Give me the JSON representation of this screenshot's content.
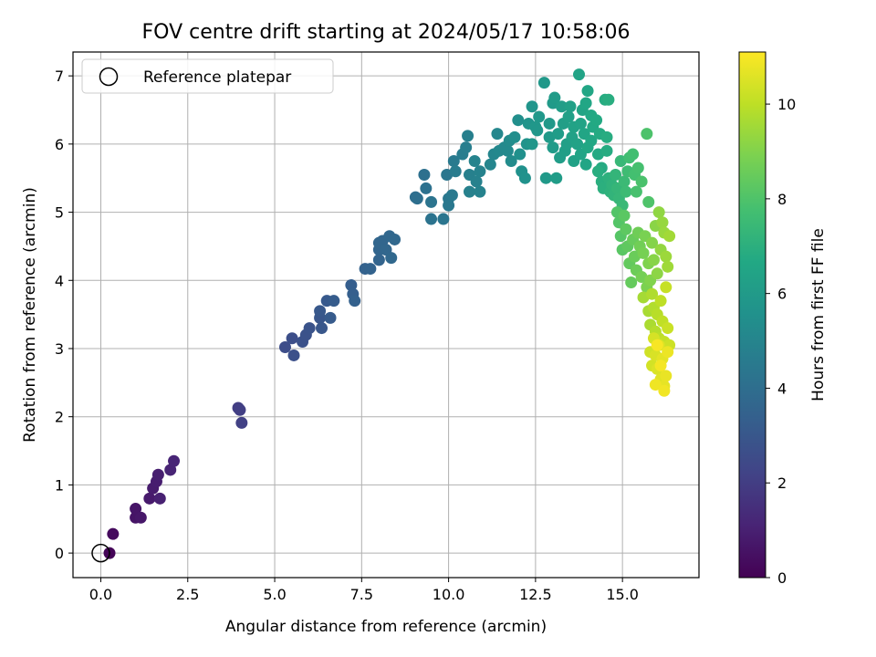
{
  "chart_data": {
    "type": "scatter",
    "title": "FOV centre drift starting at 2024/05/17 10:58:06",
    "xlabel": "Angular distance from reference (arcmin)",
    "ylabel": "Rotation from reference (arcmin)",
    "xlim": [
      -0.8,
      17.2
    ],
    "ylim": [
      -0.36,
      7.35
    ],
    "xticks": [
      0.0,
      2.5,
      5.0,
      7.5,
      10.0,
      12.5,
      15.0
    ],
    "xtick_labels": [
      "0.0",
      "2.5",
      "5.0",
      "7.5",
      "10.0",
      "12.5",
      "15.0"
    ],
    "yticks": [
      0,
      1,
      2,
      3,
      4,
      5,
      6,
      7
    ],
    "ytick_labels": [
      "0",
      "1",
      "2",
      "3",
      "4",
      "5",
      "6",
      "7"
    ],
    "grid": true,
    "legend": {
      "position": "top-left",
      "entries": [
        "Reference platepar"
      ]
    },
    "colorbar": {
      "label": "Hours from first FF file",
      "colormap": "viridis",
      "range": [
        0,
        11.1
      ],
      "ticks": [
        0,
        2,
        4,
        6,
        8,
        10
      ],
      "tick_labels": [
        "0",
        "2",
        "4",
        "6",
        "8",
        "10"
      ]
    },
    "reference_point": {
      "x": 0.0,
      "y": 0.0,
      "label": "Reference platepar"
    },
    "series": [
      {
        "marker": "filled-circle",
        "color_by": "hours",
        "points": [
          [
            0.25,
            0.0,
            0.1
          ],
          [
            0.35,
            0.28,
            0.3
          ],
          [
            1.0,
            0.52,
            0.6
          ],
          [
            1.0,
            0.65,
            0.65
          ],
          [
            1.15,
            0.52,
            0.7
          ],
          [
            1.4,
            0.8,
            0.8
          ],
          [
            1.5,
            0.95,
            0.85
          ],
          [
            1.6,
            1.05,
            0.9
          ],
          [
            1.65,
            1.15,
            0.95
          ],
          [
            1.7,
            0.8,
            1.0
          ],
          [
            2.0,
            1.22,
            1.1
          ],
          [
            2.1,
            1.35,
            1.15
          ],
          [
            3.95,
            2.13,
            2.0
          ],
          [
            4.0,
            2.1,
            2.05
          ],
          [
            4.05,
            1.91,
            2.1
          ],
          [
            5.3,
            3.02,
            2.6
          ],
          [
            5.5,
            3.15,
            2.65
          ],
          [
            5.55,
            2.9,
            2.7
          ],
          [
            5.8,
            3.1,
            2.75
          ],
          [
            5.9,
            3.2,
            2.8
          ],
          [
            6.0,
            3.3,
            2.85
          ],
          [
            6.3,
            3.45,
            2.95
          ],
          [
            6.35,
            3.3,
            3.0
          ],
          [
            6.3,
            3.55,
            3.05
          ],
          [
            6.5,
            3.7,
            3.1
          ],
          [
            6.6,
            3.45,
            3.15
          ],
          [
            6.7,
            3.7,
            3.2
          ],
          [
            7.2,
            3.93,
            3.3
          ],
          [
            7.25,
            3.8,
            3.35
          ],
          [
            7.3,
            3.7,
            3.4
          ],
          [
            7.6,
            4.17,
            3.45
          ],
          [
            7.75,
            4.17,
            3.5
          ],
          [
            8.0,
            4.3,
            3.55
          ],
          [
            8.0,
            4.45,
            3.6
          ],
          [
            8.0,
            4.55,
            3.62
          ],
          [
            8.1,
            4.58,
            3.65
          ],
          [
            8.2,
            4.45,
            3.68
          ],
          [
            8.3,
            4.65,
            3.7
          ],
          [
            8.35,
            4.33,
            3.72
          ],
          [
            8.45,
            4.6,
            3.75
          ],
          [
            9.05,
            5.22,
            4.0
          ],
          [
            9.1,
            5.2,
            4.05
          ],
          [
            9.3,
            5.55,
            4.1
          ],
          [
            9.35,
            5.35,
            4.15
          ],
          [
            9.5,
            4.9,
            4.2
          ],
          [
            9.5,
            5.15,
            4.25
          ],
          [
            9.85,
            4.9,
            4.3
          ],
          [
            9.95,
            5.55,
            4.35
          ],
          [
            10.0,
            5.2,
            4.4
          ],
          [
            10.0,
            5.1,
            4.45
          ],
          [
            10.1,
            5.25,
            4.5
          ],
          [
            10.15,
            5.75,
            4.55
          ],
          [
            10.2,
            5.6,
            4.6
          ],
          [
            10.4,
            5.85,
            4.65
          ],
          [
            10.5,
            5.95,
            4.7
          ],
          [
            10.55,
            6.12,
            4.75
          ],
          [
            10.6,
            5.55,
            4.8
          ],
          [
            10.6,
            5.3,
            4.82
          ],
          [
            10.8,
            5.45,
            4.85
          ],
          [
            10.9,
            5.6,
            4.88
          ],
          [
            10.9,
            5.3,
            4.9
          ],
          [
            10.75,
            5.75,
            4.92
          ],
          [
            11.2,
            5.7,
            5.0
          ],
          [
            11.3,
            5.85,
            5.05
          ],
          [
            11.4,
            6.15,
            5.1
          ],
          [
            11.45,
            5.9,
            5.15
          ],
          [
            11.6,
            5.95,
            5.2
          ],
          [
            11.7,
            5.9,
            5.25
          ],
          [
            11.75,
            6.05,
            5.3
          ],
          [
            11.8,
            5.75,
            5.35
          ],
          [
            11.9,
            6.1,
            5.4
          ],
          [
            12.0,
            6.35,
            5.45
          ],
          [
            12.05,
            5.85,
            5.5
          ],
          [
            12.1,
            5.6,
            5.55
          ],
          [
            12.2,
            5.5,
            5.6
          ],
          [
            12.25,
            6.0,
            5.65
          ],
          [
            12.3,
            6.3,
            5.7
          ],
          [
            12.4,
            6.55,
            5.75
          ],
          [
            12.4,
            6.0,
            5.8
          ],
          [
            12.5,
            6.25,
            5.82
          ],
          [
            12.55,
            6.2,
            5.85
          ],
          [
            12.6,
            6.4,
            5.88
          ],
          [
            12.75,
            6.9,
            5.9
          ],
          [
            12.8,
            5.5,
            5.92
          ],
          [
            12.9,
            6.3,
            5.95
          ],
          [
            12.9,
            6.1,
            5.98
          ],
          [
            13.0,
            6.6,
            6.0
          ],
          [
            13.0,
            5.95,
            6.02
          ],
          [
            13.05,
            6.68,
            6.05
          ],
          [
            13.1,
            5.5,
            6.08
          ],
          [
            13.15,
            6.15,
            6.1
          ],
          [
            13.2,
            5.8,
            6.12
          ],
          [
            13.25,
            6.55,
            6.15
          ],
          [
            13.3,
            6.3,
            6.18
          ],
          [
            13.35,
            5.9,
            6.2
          ],
          [
            13.4,
            6.0,
            6.22
          ],
          [
            13.45,
            6.4,
            6.25
          ],
          [
            13.5,
            6.55,
            6.28
          ],
          [
            13.55,
            6.1,
            6.3
          ],
          [
            13.6,
            5.75,
            6.32
          ],
          [
            13.6,
            6.25,
            6.35
          ],
          [
            13.7,
            6.0,
            6.38
          ],
          [
            13.75,
            7.02,
            6.4
          ],
          [
            13.8,
            6.3,
            6.42
          ],
          [
            13.8,
            5.85,
            6.45
          ],
          [
            13.85,
            6.5,
            6.48
          ],
          [
            13.9,
            6.15,
            6.5
          ],
          [
            13.95,
            5.7,
            6.52
          ],
          [
            13.95,
            6.6,
            6.55
          ],
          [
            14.0,
            6.78,
            6.58
          ],
          [
            14.0,
            5.95,
            6.6
          ],
          [
            14.1,
            6.05,
            6.62
          ],
          [
            14.1,
            6.42,
            6.65
          ],
          [
            14.15,
            6.25,
            6.68
          ],
          [
            14.25,
            6.35,
            6.7
          ],
          [
            14.3,
            5.85,
            6.72
          ],
          [
            14.35,
            6.15,
            6.75
          ],
          [
            14.4,
            5.65,
            6.78
          ],
          [
            14.5,
            6.65,
            6.8
          ],
          [
            14.55,
            5.9,
            6.82
          ],
          [
            14.55,
            6.1,
            6.85
          ],
          [
            14.6,
            6.65,
            6.88
          ],
          [
            14.3,
            5.6,
            6.9
          ],
          [
            14.4,
            5.45,
            6.95
          ],
          [
            14.45,
            5.35,
            7.0
          ],
          [
            14.6,
            5.5,
            7.05
          ],
          [
            14.65,
            5.3,
            7.1
          ],
          [
            14.7,
            5.4,
            7.15
          ],
          [
            14.75,
            5.25,
            7.2
          ],
          [
            14.8,
            5.55,
            7.25
          ],
          [
            14.85,
            5.35,
            7.3
          ],
          [
            14.9,
            5.2,
            7.35
          ],
          [
            14.95,
            5.75,
            7.4
          ],
          [
            15.0,
            5.1,
            7.45
          ],
          [
            15.05,
            5.45,
            7.5
          ],
          [
            15.1,
            5.3,
            7.55
          ],
          [
            15.15,
            5.6,
            7.6
          ],
          [
            15.2,
            5.8,
            7.65
          ],
          [
            15.3,
            5.85,
            7.7
          ],
          [
            15.35,
            5.55,
            7.75
          ],
          [
            15.45,
            5.65,
            7.8
          ],
          [
            15.4,
            5.3,
            7.85
          ],
          [
            15.55,
            5.45,
            7.9
          ],
          [
            15.7,
            6.15,
            7.95
          ],
          [
            15.75,
            5.15,
            8.0
          ],
          [
            14.85,
            5.0,
            8.05
          ],
          [
            14.9,
            4.85,
            8.1
          ],
          [
            14.95,
            4.65,
            8.15
          ],
          [
            15.0,
            4.45,
            8.2
          ],
          [
            15.05,
            4.95,
            8.25
          ],
          [
            15.1,
            4.75,
            8.3
          ],
          [
            15.15,
            4.5,
            8.35
          ],
          [
            15.2,
            4.25,
            8.4
          ],
          [
            15.25,
            3.97,
            8.45
          ],
          [
            15.3,
            4.6,
            8.5
          ],
          [
            15.35,
            4.35,
            8.55
          ],
          [
            15.4,
            4.15,
            8.6
          ],
          [
            15.45,
            4.7,
            8.65
          ],
          [
            15.5,
            4.5,
            8.7
          ],
          [
            15.55,
            4.05,
            8.75
          ],
          [
            15.6,
            4.4,
            8.8
          ],
          [
            15.65,
            4.65,
            8.85
          ],
          [
            15.7,
            3.9,
            8.9
          ],
          [
            15.75,
            4.25,
            8.95
          ],
          [
            15.8,
            4.0,
            9.0
          ],
          [
            15.85,
            4.55,
            9.05
          ],
          [
            15.9,
            4.3,
            9.1
          ],
          [
            15.95,
            4.8,
            9.15
          ],
          [
            16.0,
            4.1,
            9.2
          ],
          [
            16.05,
            5.0,
            9.25
          ],
          [
            16.1,
            4.45,
            9.3
          ],
          [
            16.15,
            4.85,
            9.35
          ],
          [
            16.2,
            4.7,
            9.4
          ],
          [
            16.25,
            4.35,
            9.45
          ],
          [
            16.3,
            4.2,
            9.5
          ],
          [
            16.35,
            4.65,
            9.55
          ],
          [
            15.6,
            3.75,
            9.6
          ],
          [
            15.75,
            3.55,
            9.65
          ],
          [
            15.8,
            3.35,
            9.7
          ],
          [
            15.85,
            3.8,
            9.75
          ],
          [
            15.9,
            3.6,
            9.8
          ],
          [
            15.95,
            3.25,
            9.85
          ],
          [
            16.0,
            3.5,
            9.9
          ],
          [
            16.05,
            3.15,
            9.95
          ],
          [
            16.1,
            3.7,
            10.0
          ],
          [
            16.15,
            3.4,
            10.05
          ],
          [
            16.2,
            3.1,
            10.1
          ],
          [
            16.25,
            3.9,
            10.15
          ],
          [
            16.3,
            3.3,
            10.2
          ],
          [
            16.35,
            3.05,
            10.25
          ],
          [
            15.8,
            2.95,
            10.3
          ],
          [
            15.85,
            2.75,
            10.35
          ],
          [
            15.9,
            3.15,
            10.4
          ],
          [
            15.95,
            2.9,
            10.45
          ],
          [
            16.0,
            2.7,
            10.5
          ],
          [
            16.05,
            3.05,
            10.55
          ],
          [
            16.1,
            2.55,
            10.6
          ],
          [
            16.15,
            2.85,
            10.65
          ],
          [
            16.2,
            2.45,
            10.7
          ],
          [
            16.25,
            2.6,
            10.75
          ],
          [
            16.3,
            2.95,
            10.8
          ],
          [
            15.95,
            2.47,
            10.85
          ],
          [
            16.2,
            2.38,
            10.9
          ],
          [
            16.1,
            2.75,
            10.95
          ],
          [
            16.0,
            3.05,
            11.0
          ]
        ]
      }
    ]
  }
}
